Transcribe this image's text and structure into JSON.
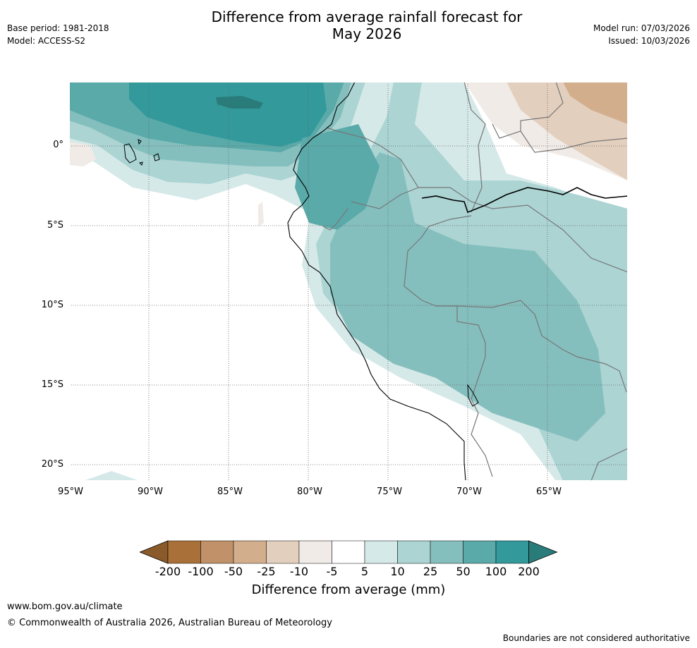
{
  "header": {
    "title_line1": "Difference from average rainfall forecast for",
    "title_line2": "May 2026",
    "base_period": "Base period: 1981-2018",
    "model": "Model: ACCESS-S2",
    "model_run": "Model run: 07/03/2026",
    "issued": "Issued: 10/03/2026"
  },
  "map": {
    "lat_labels": [
      "0°",
      "5°S",
      "10°S",
      "15°S",
      "20°S"
    ],
    "lon_labels": [
      "95°W",
      "90°W",
      "85°W",
      "80°W",
      "75°W",
      "70°W",
      "65°W"
    ]
  },
  "colorbar": {
    "ticks": [
      "-200",
      "-100",
      "-50",
      "-25",
      "-10",
      "-5",
      "5",
      "10",
      "25",
      "50",
      "100",
      "200"
    ],
    "colors": [
      "#8a5a2b",
      "#a97139",
      "#c19169",
      "#d3ae8d",
      "#e3cfbe",
      "#f0ebe6",
      "#ffffff",
      "#d5e9e8",
      "#abd4d3",
      "#84bfbe",
      "#5aaaa9",
      "#33999a",
      "#2a7c7b"
    ],
    "title": "Difference from average (mm)"
  },
  "footer": {
    "url": "www.bom.gov.au/climate",
    "copyright": "© Commonwealth of Australia 2026, Australian Bureau of Meteorology",
    "disclaimer": "Boundaries are not considered authoritative"
  }
}
